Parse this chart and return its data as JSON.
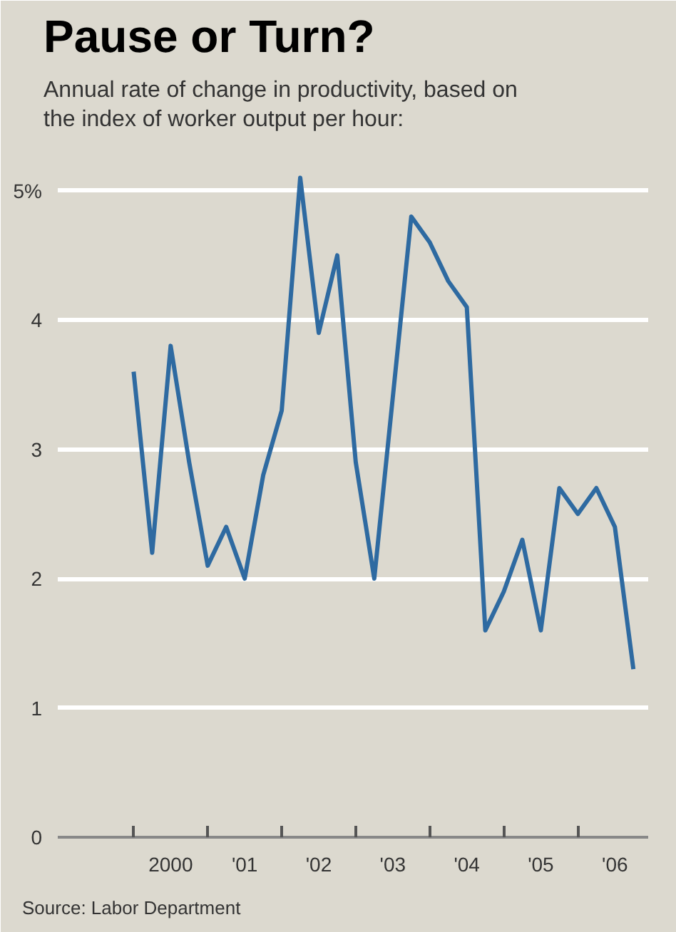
{
  "chart_data": {
    "type": "line",
    "title": "Pause or Turn?",
    "subtitle": "Annual rate of change in productivity, based on the index of worker output per hour:",
    "categories": [
      null,
      null,
      "2000",
      null,
      null,
      null,
      "'01",
      null,
      null,
      null,
      "'02",
      null,
      null,
      null,
      "'03",
      null,
      null,
      null,
      "'04",
      null,
      null,
      null,
      "'05",
      null,
      null,
      null,
      "'06",
      null
    ],
    "series": [
      {
        "color": "#2e6aa1",
        "values": [
          3.6,
          2.2,
          3.8,
          2.9,
          2.1,
          2.4,
          2.0,
          2.8,
          3.3,
          5.1,
          3.9,
          4.5,
          2.9,
          2.0,
          3.4,
          4.8,
          4.6,
          4.3,
          4.1,
          1.6,
          1.9,
          2.3,
          1.6,
          2.7,
          2.5,
          2.7,
          2.4,
          1.3
        ]
      }
    ],
    "ylim": [
      0,
      5.4
    ],
    "yticks": [
      0,
      1,
      2,
      3,
      4,
      {
        "value": 5,
        "label": "5%"
      }
    ],
    "grid": "y",
    "marker": "none",
    "line_style": "solid",
    "annotations": [
      "Source: Labor Department"
    ]
  }
}
